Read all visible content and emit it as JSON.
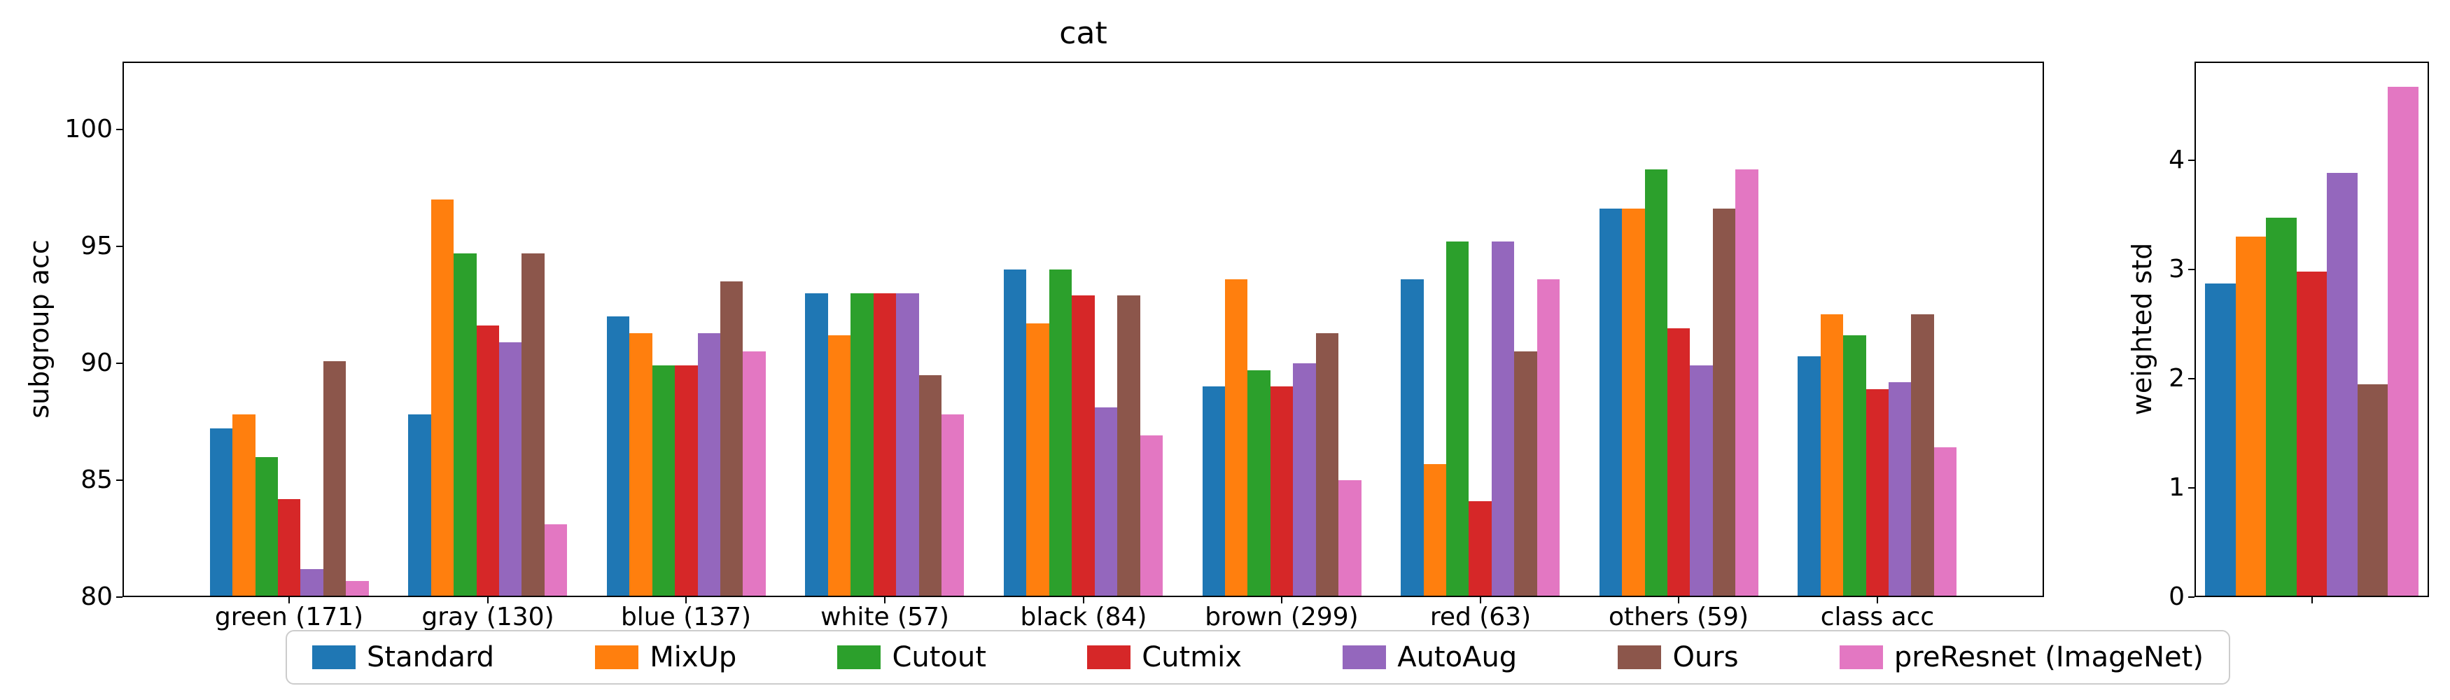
{
  "figure": {
    "background": "#ffffff",
    "legend_position": "lower center"
  },
  "chart_data": [
    {
      "type": "bar",
      "title": "cat",
      "xlabel": "",
      "ylabel": "subgroup acc",
      "ylim": [
        80,
        102.9
      ],
      "xlim": [
        -0.84,
        8.84
      ],
      "yticks": [
        80,
        85,
        90,
        95,
        100
      ],
      "grid": false,
      "categories": [
        "green (171)",
        "gray (130)",
        "blue (137)",
        "white (57)",
        "black (84)",
        "brown (299)",
        "red (63)",
        "others (59)",
        "class acc"
      ],
      "series": [
        {
          "name": "Standard",
          "color": "#1f77b4",
          "values": [
            87.2,
            87.8,
            92.0,
            93.0,
            94.0,
            89.0,
            93.6,
            96.6,
            90.3
          ]
        },
        {
          "name": "MixUp",
          "color": "#ff7f0e",
          "values": [
            87.8,
            97.0,
            91.3,
            91.2,
            91.7,
            93.6,
            85.7,
            96.6,
            92.1
          ]
        },
        {
          "name": "Cutout",
          "color": "#2ca02c",
          "values": [
            86.0,
            94.7,
            89.9,
            93.0,
            94.0,
            89.7,
            95.2,
            98.3,
            91.2
          ]
        },
        {
          "name": "Cutmix",
          "color": "#d62728",
          "values": [
            84.2,
            91.6,
            89.9,
            93.0,
            92.9,
            89.0,
            84.1,
            91.5,
            88.9
          ]
        },
        {
          "name": "AutoAug",
          "color": "#9467bd",
          "values": [
            81.2,
            90.9,
            91.3,
            93.0,
            88.1,
            90.0,
            95.2,
            89.9,
            89.2
          ]
        },
        {
          "name": "Ours",
          "color": "#8c564b",
          "values": [
            90.1,
            94.7,
            93.5,
            89.5,
            92.9,
            91.3,
            90.5,
            96.6,
            92.1
          ]
        },
        {
          "name": "preResnet (ImageNet)",
          "color": "#e377c2",
          "values": [
            80.7,
            83.1,
            90.5,
            87.8,
            86.9,
            85.0,
            93.6,
            98.3,
            86.4
          ]
        }
      ]
    },
    {
      "type": "bar",
      "title": "",
      "xlabel": "",
      "ylabel": "weighted std",
      "ylim": [
        0,
        4.9
      ],
      "xlim": [
        -0.44,
        0.44
      ],
      "yticks": [
        0,
        1,
        2,
        3,
        4
      ],
      "grid": false,
      "categories": [
        ""
      ],
      "series": [
        {
          "name": "Standard",
          "color": "#1f77b4",
          "values": [
            2.87
          ]
        },
        {
          "name": "MixUp",
          "color": "#ff7f0e",
          "values": [
            3.3
          ]
        },
        {
          "name": "Cutout",
          "color": "#2ca02c",
          "values": [
            3.47
          ]
        },
        {
          "name": "Cutmix",
          "color": "#d62728",
          "values": [
            2.98
          ]
        },
        {
          "name": "AutoAug",
          "color": "#9467bd",
          "values": [
            3.88
          ]
        },
        {
          "name": "Ours",
          "color": "#8c564b",
          "values": [
            1.95
          ]
        },
        {
          "name": "preResnet (ImageNet)",
          "color": "#e377c2",
          "values": [
            4.67
          ]
        }
      ]
    }
  ]
}
